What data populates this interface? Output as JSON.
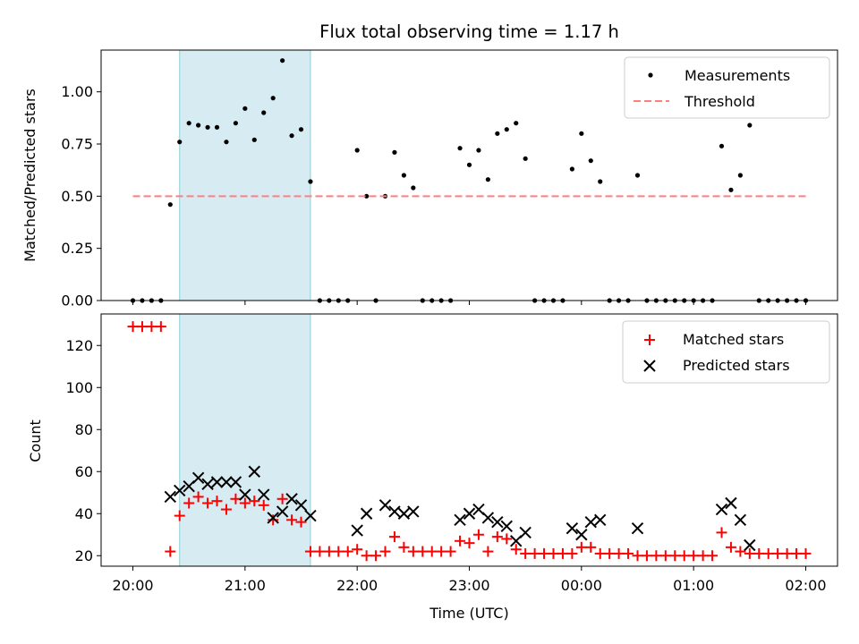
{
  "chart_data": [
    {
      "type": "scatter",
      "title": "Flux total observing time = 1.17 h",
      "ylabel": "Matched/Predicted stars",
      "xlabel": "",
      "xlim": [
        "19:43",
        "02:17"
      ],
      "ylim": [
        0,
        1.2
      ],
      "yticks": [
        0.0,
        0.25,
        0.5,
        0.75,
        1.0
      ],
      "ytick_labels": [
        "0.00",
        "0.25",
        "0.50",
        "0.75",
        "1.00"
      ],
      "highlight_span": [
        "20:25",
        "21:35"
      ],
      "legend": "top-right",
      "series": [
        {
          "name": "Measurements",
          "marker": "dot",
          "color": "#000000",
          "points": [
            [
              "20:00",
              0.0
            ],
            [
              "20:05",
              0.0
            ],
            [
              "20:10",
              0.0
            ],
            [
              "20:15",
              0.0
            ],
            [
              "20:20",
              0.46
            ],
            [
              "20:25",
              0.76
            ],
            [
              "20:30",
              0.85
            ],
            [
              "20:35",
              0.84
            ],
            [
              "20:40",
              0.83
            ],
            [
              "20:45",
              0.83
            ],
            [
              "20:50",
              0.76
            ],
            [
              "20:55",
              0.85
            ],
            [
              "21:00",
              0.92
            ],
            [
              "21:05",
              0.77
            ],
            [
              "21:10",
              0.9
            ],
            [
              "21:15",
              0.97
            ],
            [
              "21:20",
              1.15
            ],
            [
              "21:25",
              0.79
            ],
            [
              "21:30",
              0.82
            ],
            [
              "21:35",
              0.57
            ],
            [
              "21:40",
              0.0
            ],
            [
              "21:45",
              0.0
            ],
            [
              "21:50",
              0.0
            ],
            [
              "21:55",
              0.0
            ],
            [
              "22:00",
              0.72
            ],
            [
              "22:05",
              0.5
            ],
            [
              "22:10",
              0.0
            ],
            [
              "22:15",
              0.5
            ],
            [
              "22:20",
              0.71
            ],
            [
              "22:25",
              0.6
            ],
            [
              "22:30",
              0.54
            ],
            [
              "22:35",
              0.0
            ],
            [
              "22:40",
              0.0
            ],
            [
              "22:45",
              0.0
            ],
            [
              "22:50",
              0.0
            ],
            [
              "22:55",
              0.73
            ],
            [
              "23:00",
              0.65
            ],
            [
              "23:05",
              0.72
            ],
            [
              "23:10",
              0.58
            ],
            [
              "23:15",
              0.8
            ],
            [
              "23:20",
              0.82
            ],
            [
              "23:25",
              0.85
            ],
            [
              "23:30",
              0.68
            ],
            [
              "23:35",
              0.0
            ],
            [
              "23:40",
              0.0
            ],
            [
              "23:45",
              0.0
            ],
            [
              "23:50",
              0.0
            ],
            [
              "23:55",
              0.63
            ],
            [
              "00:00",
              0.8
            ],
            [
              "00:05",
              0.67
            ],
            [
              "00:10",
              0.57
            ],
            [
              "00:15",
              0.0
            ],
            [
              "00:20",
              0.0
            ],
            [
              "00:25",
              0.0
            ],
            [
              "00:30",
              0.6
            ],
            [
              "00:35",
              0.0
            ],
            [
              "00:40",
              0.0
            ],
            [
              "00:45",
              0.0
            ],
            [
              "00:50",
              0.0
            ],
            [
              "00:55",
              0.0
            ],
            [
              "01:00",
              0.0
            ],
            [
              "01:05",
              0.0
            ],
            [
              "01:10",
              0.0
            ],
            [
              "01:15",
              0.74
            ],
            [
              "01:20",
              0.53
            ],
            [
              "01:25",
              0.6
            ],
            [
              "01:30",
              0.84
            ],
            [
              "01:35",
              0.0
            ],
            [
              "01:40",
              0.0
            ],
            [
              "01:45",
              0.0
            ],
            [
              "01:50",
              0.0
            ],
            [
              "01:55",
              0.0
            ],
            [
              "02:00",
              0.0
            ]
          ]
        },
        {
          "name": "Threshold",
          "marker": "dashed-line",
          "color": "#ff7f7f",
          "points": [
            [
              "20:00",
              0.5
            ],
            [
              "02:00",
              0.5
            ]
          ]
        }
      ]
    },
    {
      "type": "scatter",
      "title": "",
      "ylabel": "Count",
      "xlabel": "Time (UTC)",
      "xlim": [
        "19:43",
        "02:17"
      ],
      "ylim": [
        15,
        135
      ],
      "xticks": [
        "20:00",
        "21:00",
        "22:00",
        "23:00",
        "00:00",
        "01:00",
        "02:00"
      ],
      "yticks": [
        20,
        40,
        60,
        80,
        100,
        120
      ],
      "ytick_labels": [
        "20",
        "40",
        "60",
        "80",
        "100",
        "120"
      ],
      "highlight_span": [
        "20:25",
        "21:35"
      ],
      "legend": "top-right",
      "series": [
        {
          "name": "Matched stars",
          "marker": "plus",
          "color": "#ff0000",
          "points": [
            [
              "20:00",
              129
            ],
            [
              "20:05",
              129
            ],
            [
              "20:10",
              129
            ],
            [
              "20:15",
              129
            ],
            [
              "20:20",
              22
            ],
            [
              "20:25",
              39
            ],
            [
              "20:30",
              45
            ],
            [
              "20:35",
              48
            ],
            [
              "20:40",
              45
            ],
            [
              "20:45",
              46
            ],
            [
              "20:50",
              42
            ],
            [
              "20:55",
              47
            ],
            [
              "21:00",
              45
            ],
            [
              "21:05",
              46
            ],
            [
              "21:10",
              44
            ],
            [
              "21:15",
              37
            ],
            [
              "21:20",
              47
            ],
            [
              "21:25",
              37
            ],
            [
              "21:30",
              36
            ],
            [
              "21:35",
              22
            ],
            [
              "21:40",
              22
            ],
            [
              "21:45",
              22
            ],
            [
              "21:50",
              22
            ],
            [
              "21:55",
              22
            ],
            [
              "22:00",
              23
            ],
            [
              "22:05",
              20
            ],
            [
              "22:10",
              20
            ],
            [
              "22:15",
              22
            ],
            [
              "22:20",
              29
            ],
            [
              "22:25",
              24
            ],
            [
              "22:30",
              22
            ],
            [
              "22:35",
              22
            ],
            [
              "22:40",
              22
            ],
            [
              "22:45",
              22
            ],
            [
              "22:50",
              22
            ],
            [
              "22:55",
              27
            ],
            [
              "23:00",
              26
            ],
            [
              "23:05",
              30
            ],
            [
              "23:10",
              22
            ],
            [
              "23:15",
              29
            ],
            [
              "23:20",
              28
            ],
            [
              "23:25",
              23
            ],
            [
              "23:30",
              21
            ],
            [
              "23:35",
              21
            ],
            [
              "23:40",
              21
            ],
            [
              "23:45",
              21
            ],
            [
              "23:50",
              21
            ],
            [
              "23:55",
              21
            ],
            [
              "00:00",
              24
            ],
            [
              "00:05",
              24
            ],
            [
              "00:10",
              21
            ],
            [
              "00:15",
              21
            ],
            [
              "00:20",
              21
            ],
            [
              "00:25",
              21
            ],
            [
              "00:30",
              20
            ],
            [
              "00:35",
              20
            ],
            [
              "00:40",
              20
            ],
            [
              "00:45",
              20
            ],
            [
              "00:50",
              20
            ],
            [
              "00:55",
              20
            ],
            [
              "01:00",
              20
            ],
            [
              "01:05",
              20
            ],
            [
              "01:10",
              20
            ],
            [
              "01:15",
              31
            ],
            [
              "01:20",
              24
            ],
            [
              "01:25",
              22
            ],
            [
              "01:30",
              21
            ],
            [
              "01:35",
              21
            ],
            [
              "01:40",
              21
            ],
            [
              "01:45",
              21
            ],
            [
              "01:50",
              21
            ],
            [
              "01:55",
              21
            ],
            [
              "02:00",
              21
            ]
          ]
        },
        {
          "name": "Predicted stars",
          "marker": "x",
          "color": "#000000",
          "points": [
            [
              "20:20",
              48
            ],
            [
              "20:25",
              51
            ],
            [
              "20:30",
              53
            ],
            [
              "20:35",
              57
            ],
            [
              "20:40",
              54
            ],
            [
              "20:45",
              55
            ],
            [
              "20:50",
              55
            ],
            [
              "20:55",
              55
            ],
            [
              "21:00",
              49
            ],
            [
              "21:05",
              60
            ],
            [
              "21:10",
              49
            ],
            [
              "21:15",
              38
            ],
            [
              "21:20",
              41
            ],
            [
              "21:25",
              47
            ],
            [
              "21:30",
              44
            ],
            [
              "21:35",
              39
            ],
            [
              "22:00",
              32
            ],
            [
              "22:05",
              40
            ],
            [
              "22:15",
              44
            ],
            [
              "22:20",
              41
            ],
            [
              "22:25",
              40
            ],
            [
              "22:30",
              41
            ],
            [
              "22:55",
              37
            ],
            [
              "23:00",
              40
            ],
            [
              "23:05",
              42
            ],
            [
              "23:10",
              38
            ],
            [
              "23:15",
              36
            ],
            [
              "23:20",
              34
            ],
            [
              "23:25",
              27
            ],
            [
              "23:30",
              31
            ],
            [
              "23:55",
              33
            ],
            [
              "00:00",
              30
            ],
            [
              "00:05",
              36
            ],
            [
              "00:10",
              37
            ],
            [
              "00:30",
              33
            ],
            [
              "01:15",
              42
            ],
            [
              "01:20",
              45
            ],
            [
              "01:25",
              37
            ],
            [
              "01:30",
              25
            ]
          ]
        }
      ]
    }
  ]
}
